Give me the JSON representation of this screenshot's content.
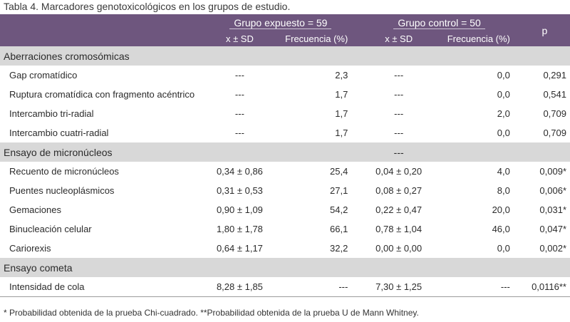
{
  "caption": "Tabla 4. Marcadores genotoxicológicos en los grupos de estudio.",
  "header": {
    "group1": "Grupo expuesto = 59",
    "group2": "Grupo control = 50",
    "p": "p",
    "sub": [
      "x ± SD",
      "Frecuencia (%)",
      "x ± SD",
      "Frecuencia (%)"
    ]
  },
  "sections": [
    {
      "title": "Aberraciones cromosómicas",
      "mid": "",
      "rows": [
        {
          "label": "Gap cromatídico",
          "e_sd": "---",
          "e_freq": "2,3",
          "c_sd": "---",
          "c_freq": "0,0",
          "p": "0,291"
        },
        {
          "label": "Ruptura cromatídica con fragmento acéntrico",
          "e_sd": "---",
          "e_freq": "1,7",
          "c_sd": "---",
          "c_freq": "0,0",
          "p": "0,541"
        },
        {
          "label": "Intercambio tri-radial",
          "e_sd": "---",
          "e_freq": "1,7",
          "c_sd": "---",
          "c_freq": "2,0",
          "p": "0,709"
        },
        {
          "label": "Intercambio cuatri-radial",
          "e_sd": "---",
          "e_freq": "1,7",
          "c_sd": "---",
          "c_freq": "0,0",
          "p": "0,709"
        }
      ]
    },
    {
      "title": "Ensayo de micronúcleos",
      "mid": "---",
      "rows": [
        {
          "label": "Recuento de micronúcleos",
          "e_sd": "0,34 ± 0,86",
          "e_freq": "25,4",
          "c_sd": "0,04 ± 0,20",
          "c_freq": "4,0",
          "p": "0,009*"
        },
        {
          "label": "Puentes nucleoplásmicos",
          "e_sd": "0,31 ± 0,53",
          "e_freq": "27,1",
          "c_sd": "0,08 ± 0,27",
          "c_freq": "8,0",
          "p": "0,006*"
        },
        {
          "label": "Gemaciones",
          "e_sd": "0,90 ± 1,09",
          "e_freq": "54,2",
          "c_sd": "0,22 ± 0,47",
          "c_freq": "20,0",
          "p": "0,031*"
        },
        {
          "label": "Binucleación celular",
          "e_sd": "1,80 ± 1,78",
          "e_freq": "66,1",
          "c_sd": "0,78 ± 1,04",
          "c_freq": "46,0",
          "p": "0,047*"
        },
        {
          "label": "Cariorexis",
          "e_sd": "0,64 ± 1,17",
          "e_freq": "32,2",
          "c_sd": "0,00 ± 0,00",
          "c_freq": "0,0",
          "p": "0,002*"
        }
      ]
    },
    {
      "title": "Ensayo cometa",
      "mid": "",
      "rows": [
        {
          "label": "Intensidad de cola",
          "e_sd": "8,28 ± 1,85",
          "e_freq": "---",
          "c_sd": "7,30 ± 1,25",
          "c_freq": "---",
          "p": "0,0116**"
        }
      ]
    }
  ],
  "footnote": "* Probabilidad obtenida de la prueba Chi-cuadrado. **Probabilidad obtenida de la prueba U de Mann Whitney.",
  "colors": {
    "header_bg": "#6e567e",
    "section_bg": "#d8d8d8"
  }
}
